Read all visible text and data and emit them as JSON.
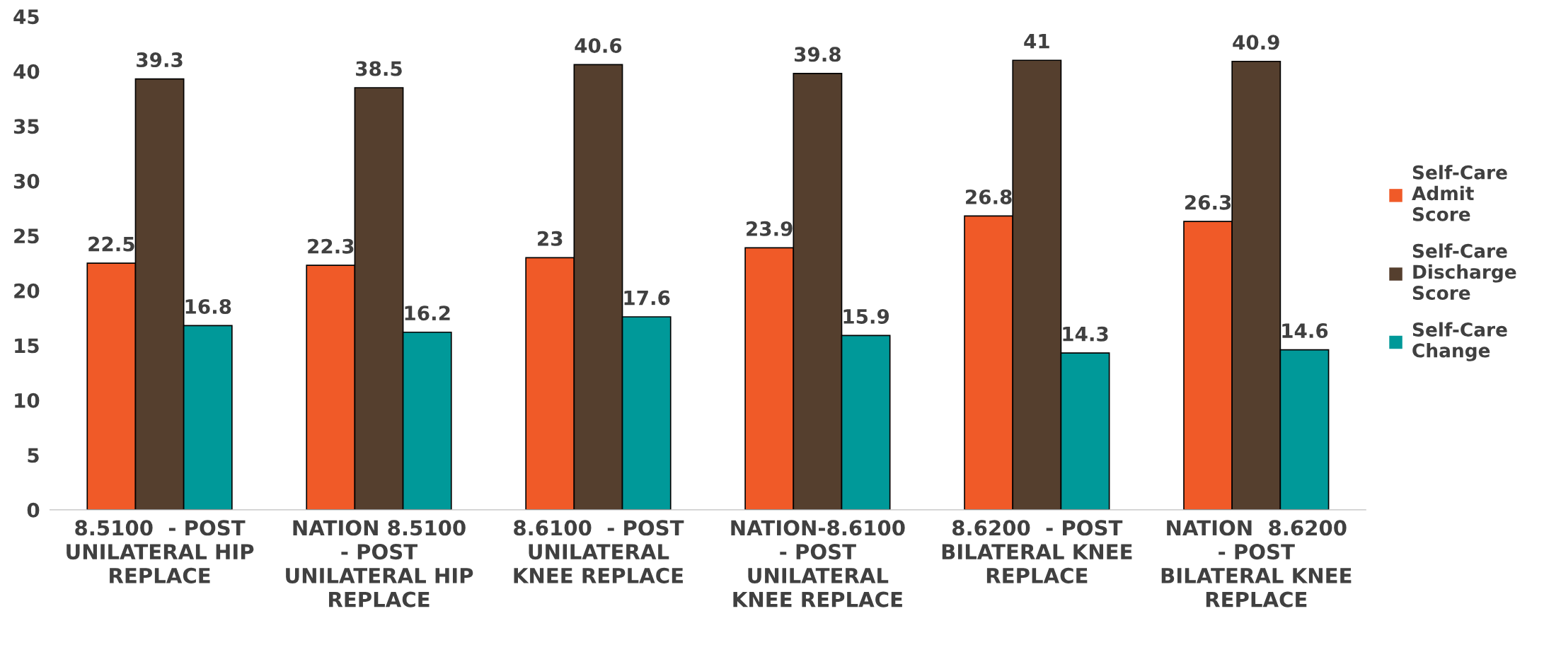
{
  "chart_data": {
    "type": "bar",
    "categories": [
      "8.5100  - POST\nUNILATERAL HIP\nREPLACE",
      "NATION 8.5100\n- POST\nUNILATERAL HIP\nREPLACE",
      "8.6100  - POST\nUNILATERAL\nKNEE REPLACE",
      "NATION-8.6100\n- POST\nUNILATERAL\nKNEE REPLACE",
      "8.6200  - POST\nBILATERAL KNEE\nREPLACE",
      "NATION  8.6200\n- POST\nBILATERAL KNEE\nREPLACE"
    ],
    "series": [
      {
        "name": "Self-Care\nAdmit\nScore",
        "color": "#f05a28",
        "values": [
          22.5,
          22.3,
          23,
          23.9,
          26.8,
          26.3
        ]
      },
      {
        "name": "Self-Care\nDischarge\nScore",
        "color": "#553f2e",
        "values": [
          39.3,
          38.5,
          40.6,
          39.8,
          41,
          40.9
        ]
      },
      {
        "name": "Self-Care\nChange",
        "color": "#009999",
        "values": [
          16.8,
          16.2,
          17.6,
          15.9,
          14.3,
          14.6
        ]
      }
    ],
    "ylim": [
      0,
      45
    ],
    "yticks": [
      0,
      5,
      10,
      15,
      20,
      25,
      30,
      35,
      40,
      45
    ],
    "data_labels": true,
    "legend": "right",
    "grid": false
  }
}
